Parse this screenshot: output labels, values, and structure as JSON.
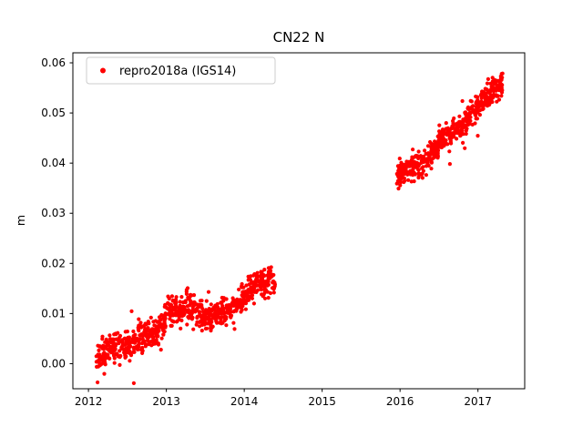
{
  "chart_data": {
    "type": "scatter",
    "title": "CN22 N",
    "xlabel": "",
    "ylabel": "m",
    "legend": {
      "label": "repro2018a (IGS14)",
      "position": "upper left",
      "marker_color": "#ff0000"
    },
    "marker": {
      "style": "dot",
      "color": "#ff0000",
      "radius_px": 2.1
    },
    "axes": {
      "xlim": [
        2011.8,
        2017.6
      ],
      "ylim": [
        -0.005,
        0.062
      ],
      "grid": false,
      "xticks": [
        {
          "value": 2012,
          "label": "2012"
        },
        {
          "value": 2013,
          "label": "2013"
        },
        {
          "value": 2014,
          "label": "2014"
        },
        {
          "value": 2015,
          "label": "2015"
        },
        {
          "value": 2016,
          "label": "2016"
        },
        {
          "value": 2017,
          "label": "2017"
        }
      ],
      "yticks": [
        {
          "value": 0.0,
          "label": "0.00"
        },
        {
          "value": 0.01,
          "label": "0.01"
        },
        {
          "value": 0.02,
          "label": "0.02"
        },
        {
          "value": 0.03,
          "label": "0.03"
        },
        {
          "value": 0.04,
          "label": "0.04"
        },
        {
          "value": 0.05,
          "label": "0.05"
        },
        {
          "value": 0.06,
          "label": "0.06"
        }
      ]
    },
    "series": [
      {
        "name": "repro2018a (IGS14)",
        "color": "#ff0000",
        "description": "GPS north-component daily position time series in meters; two observation spans with a data gap between mid-2014 and end of 2015.",
        "clusters": [
          {
            "time_range": [
              2012.1,
              2014.4
            ],
            "trend_anchors": [
              [
                2012.1,
                0.0005
              ],
              [
                2012.25,
                0.0035
              ],
              [
                2012.4,
                0.003
              ],
              [
                2012.6,
                0.0045
              ],
              [
                2012.8,
                0.006
              ],
              [
                2012.95,
                0.007
              ],
              [
                2013.02,
                0.0105
              ],
              [
                2013.3,
                0.011
              ],
              [
                2013.5,
                0.0095
              ],
              [
                2013.7,
                0.01
              ],
              [
                2013.9,
                0.0115
              ],
              [
                2014.05,
                0.0145
              ],
              [
                2014.2,
                0.016
              ],
              [
                2014.4,
                0.017
              ]
            ],
            "noise_sd": 0.0014,
            "outlier_rate": 0.05,
            "outlier_sd_mult": 2.3,
            "points_per_year": 380,
            "seed": 42
          },
          {
            "time_range": [
              2015.95,
              2017.32
            ],
            "trend_anchors": [
              [
                2015.95,
                0.0375
              ],
              [
                2016.1,
                0.039
              ],
              [
                2016.3,
                0.0395
              ],
              [
                2016.5,
                0.044
              ],
              [
                2016.65,
                0.046
              ],
              [
                2016.8,
                0.0475
              ],
              [
                2016.95,
                0.05
              ],
              [
                2017.1,
                0.053
              ],
              [
                2017.22,
                0.0545
              ],
              [
                2017.32,
                0.056
              ]
            ],
            "noise_sd": 0.0012,
            "outlier_rate": 0.05,
            "outlier_sd_mult": 2.2,
            "points_per_year": 380,
            "seed": 1337
          }
        ]
      }
    ]
  }
}
